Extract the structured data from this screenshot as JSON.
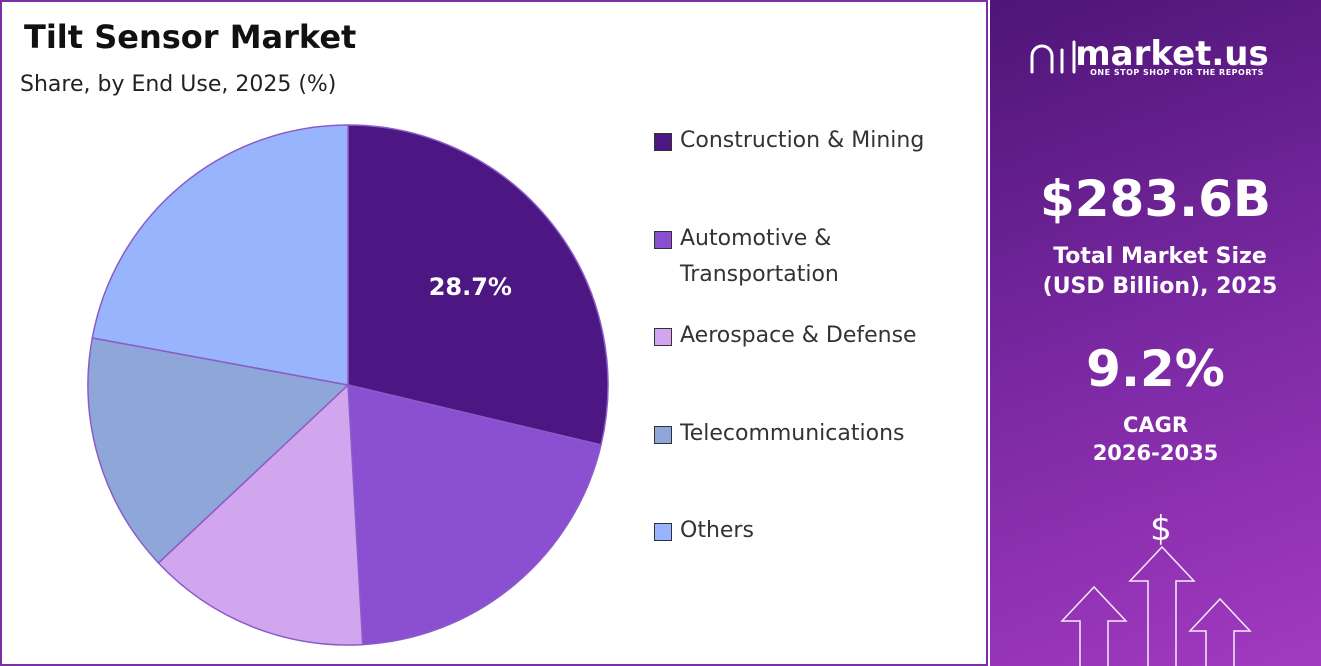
{
  "chart_data": {
    "type": "pie",
    "title": "Tilt Sensor Market",
    "subtitle": "Share, by End Use, 2025 (%)",
    "categories": [
      "Construction & Mining",
      "Automotive & Transportation",
      "Aerospace & Defense",
      "Telecommunications",
      "Others"
    ],
    "values": [
      28.7,
      20.4,
      13.9,
      14.9,
      22.1
    ],
    "value_labels": [
      "28.7%",
      null,
      null,
      null,
      null
    ],
    "colors": [
      "#4c1782",
      "#8b4fd1",
      "#d2a6ee",
      "#8fa6d9",
      "#97b4fd"
    ],
    "legend": "right"
  },
  "panel": {
    "brand": "market.us",
    "tagline": "ONE STOP SHOP FOR THE REPORTS",
    "market_size": "$283.6B",
    "market_size_label": "Total Market Size (USD Billion), 2025",
    "cagr": "9.2%",
    "cagr_label": "CAGR",
    "cagr_period": "2026-2035"
  }
}
